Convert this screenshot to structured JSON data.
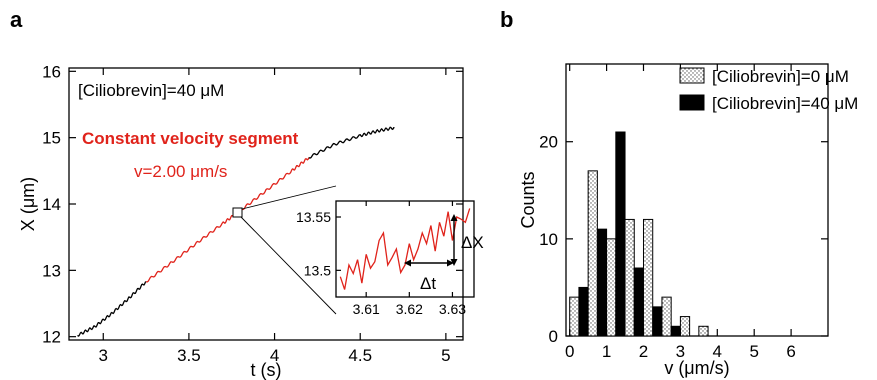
{
  "panel_a": {
    "letter": "a",
    "condition_label": "[Ciliobrevin]=40 μM",
    "segment_title": "Constant velocity segment",
    "velocity_label": "v=2.00 μm/s",
    "delta_x_label": "ΔX",
    "delta_t_label": "Δt"
  },
  "panel_b": {
    "letter": "b"
  },
  "colors": {
    "trace_black": "#000000",
    "trace_red": "#e0231b",
    "bar_open": "#e6e6e6",
    "bar_filled": "#000000"
  },
  "chart_data": [
    {
      "id": "trajectory",
      "type": "line",
      "xlabel": "t (s)",
      "ylabel": "X (μm)",
      "xlim": [
        2.8,
        5.1
      ],
      "ylim": [
        11.95,
        16.05
      ],
      "xticks": [
        3,
        3.5,
        4,
        4.5,
        5
      ],
      "xtick_labels": [
        "3",
        "3.5",
        "4",
        "4.5",
        "5"
      ],
      "yticks": [
        12,
        13,
        14,
        15,
        16
      ],
      "ytick_labels": [
        "12",
        "13",
        "14",
        "15",
        "16"
      ],
      "series": [
        {
          "segment": "before",
          "color": "#000000",
          "x": [
            2.85,
            2.95,
            3.05,
            3.15,
            3.25
          ],
          "y": [
            12.02,
            12.15,
            12.35,
            12.58,
            12.83
          ]
        },
        {
          "segment": "constant",
          "color": "#e0231b",
          "x": [
            3.25,
            3.4,
            3.55,
            3.7,
            3.8,
            3.95,
            4.1,
            4.2
          ],
          "y": [
            12.83,
            13.12,
            13.42,
            13.71,
            13.9,
            14.2,
            14.5,
            14.7
          ]
        },
        {
          "segment": "after",
          "color": "#000000",
          "x": [
            4.2,
            4.35,
            4.5,
            4.6,
            4.7
          ],
          "y": [
            14.7,
            14.9,
            15.03,
            15.1,
            15.15
          ]
        }
      ]
    },
    {
      "id": "inset",
      "type": "line",
      "xlim": [
        3.603,
        3.635
      ],
      "ylim": [
        13.475,
        13.565
      ],
      "xticks": [
        3.61,
        3.62,
        3.63
      ],
      "xtick_labels": [
        "3.61",
        "3.62",
        "3.63"
      ],
      "yticks": [
        13.5,
        13.55
      ],
      "ytick_labels": [
        "13.5",
        "13.55"
      ],
      "series": [
        {
          "color": "#e0231b",
          "x": [
            3.604,
            3.605,
            3.606,
            3.607,
            3.608,
            3.609,
            3.61,
            3.611,
            3.612,
            3.613,
            3.614,
            3.615,
            3.616,
            3.617,
            3.618,
            3.619,
            3.62,
            3.621,
            3.622,
            3.623,
            3.624,
            3.625,
            3.626,
            3.627,
            3.628,
            3.629,
            3.63,
            3.631,
            3.632,
            3.633,
            3.634
          ],
          "y": [
            13.494,
            13.482,
            13.505,
            13.497,
            13.51,
            13.488,
            13.515,
            13.502,
            13.508,
            13.528,
            13.535,
            13.505,
            13.512,
            13.52,
            13.498,
            13.505,
            13.525,
            13.51,
            13.52,
            13.535,
            13.525,
            13.542,
            13.518,
            13.545,
            13.532,
            13.555,
            13.528,
            13.55,
            13.548,
            13.545,
            13.558
          ]
        }
      ]
    },
    {
      "id": "histogram",
      "type": "bar",
      "xlabel": "v (μm/s)",
      "ylabel": "Counts",
      "xlim": [
        -0.1,
        7
      ],
      "ylim": [
        0,
        28
      ],
      "xticks": [
        0,
        1,
        2,
        3,
        4,
        5,
        6
      ],
      "xtick_labels": [
        "0",
        "1",
        "2",
        "3",
        "4",
        "5",
        "6"
      ],
      "yticks": [
        0,
        10,
        20
      ],
      "ytick_labels": [
        "0",
        "10",
        "20"
      ],
      "bin_starts": [
        0,
        0.5,
        1,
        1.5,
        2,
        2.5,
        3,
        3.5,
        4,
        4.5,
        5,
        5.5
      ],
      "bin_width": 0.5,
      "series": [
        {
          "name": "[Ciliobrevin]=0 μM",
          "fill": "dotted",
          "values": [
            4,
            17,
            10,
            12,
            12,
            4,
            2,
            1,
            0,
            0,
            0,
            0
          ]
        },
        {
          "name": "[Ciliobrevin]=40 μM",
          "fill": "solid",
          "values": [
            5,
            11,
            21,
            7,
            3,
            1,
            0,
            0,
            0,
            0,
            0,
            0
          ]
        }
      ]
    }
  ]
}
